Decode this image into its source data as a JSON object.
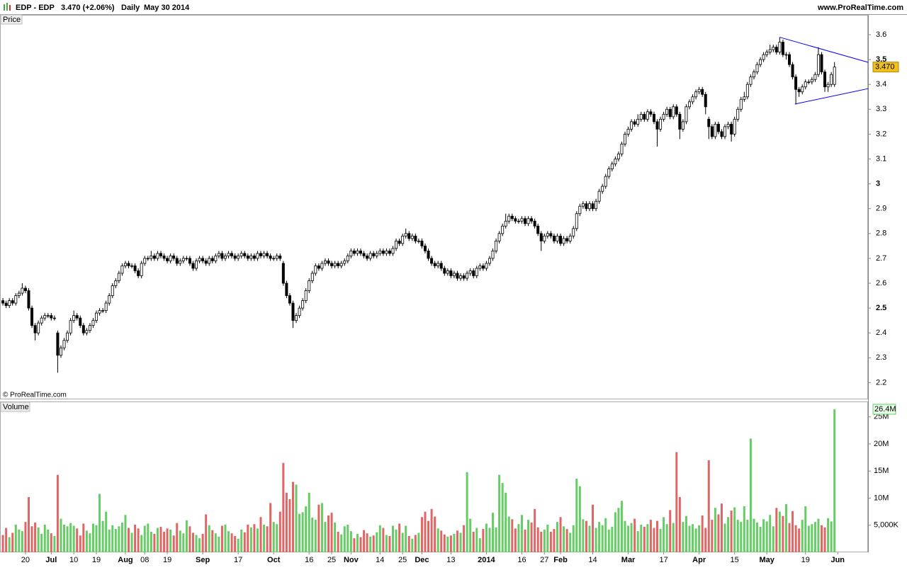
{
  "chart_data": {
    "type": "candlestick",
    "header": {
      "symbol": "EDP - EDP",
      "quote": "3.470 (+2.06%)",
      "period": "Daily",
      "date": "May 30 2014",
      "site": "www.ProRealTime.com"
    },
    "price_label": "Price",
    "volume_label": "Volume",
    "copyright": "© ProRealTime.com",
    "xlim": [
      -0.9,
      268.4
    ],
    "xticks": [
      {
        "value": 7,
        "label": "20"
      },
      {
        "value": 15,
        "label": "Jul"
      },
      {
        "value": 22,
        "label": "10"
      },
      {
        "value": 29,
        "label": "19"
      },
      {
        "value": 38,
        "label": "Aug"
      },
      {
        "value": 44,
        "label": "08"
      },
      {
        "value": 51,
        "label": "19"
      },
      {
        "value": 62,
        "label": "Sep"
      },
      {
        "value": 73,
        "label": "17"
      },
      {
        "value": 84,
        "label": "Oct"
      },
      {
        "value": 95,
        "label": "16"
      },
      {
        "value": 102,
        "label": "25"
      },
      {
        "value": 108,
        "label": "Nov"
      },
      {
        "value": 117,
        "label": "14"
      },
      {
        "value": 124,
        "label": "25"
      },
      {
        "value": 130,
        "label": "Dec"
      },
      {
        "value": 139,
        "label": "13"
      },
      {
        "value": 150,
        "label": "2014"
      },
      {
        "value": 161,
        "label": "16"
      },
      {
        "value": 168,
        "label": "27"
      },
      {
        "value": 173,
        "label": "Feb"
      },
      {
        "value": 183,
        "label": "14"
      },
      {
        "value": 194,
        "label": "Mar"
      },
      {
        "value": 205,
        "label": "17"
      },
      {
        "value": 216,
        "label": "Apr"
      },
      {
        "value": 227,
        "label": "15"
      },
      {
        "value": 237,
        "label": "May"
      },
      {
        "value": 249,
        "label": "19"
      },
      {
        "value": 259,
        "label": "Jun"
      }
    ],
    "ylim": [
      2.137,
      3.64
    ],
    "yticks": [
      2.2,
      2.3,
      2.4,
      2.5,
      2.6,
      2.7,
      2.8,
      2.9,
      3,
      3.1,
      3.2,
      3.3,
      3.4,
      3.5,
      3.6
    ],
    "vlim": [
      0,
      27.84
    ],
    "vticks": [
      {
        "value": 5,
        "label": "5,000K"
      },
      {
        "value": 10,
        "label": "10M"
      },
      {
        "value": 15,
        "label": "15M"
      },
      {
        "value": 20,
        "label": "20M"
      },
      {
        "value": 25,
        "label": "25M"
      }
    ],
    "up_color": "#66cc66",
    "down_color": "#e06666",
    "trend_color": "#0000ff",
    "price_tag": {
      "value": 3.47,
      "label": "3.470"
    },
    "volume_tag": {
      "value": 26.4,
      "label": "26.4M"
    },
    "trendlines": [
      {
        "x": [
          241,
          268.4
        ],
        "y": [
          3.59,
          3.489
        ]
      },
      {
        "x": [
          245.7,
          268.4
        ],
        "y": [
          3.321,
          3.383
        ]
      }
    ],
    "open": [
      2.53,
      2.52,
      2.51,
      2.53,
      2.52,
      2.55,
      2.56,
      2.58,
      2.57,
      2.5,
      2.43,
      2.4,
      2.44,
      2.46,
      2.47,
      2.47,
      2.46,
      2.4,
      2.31,
      2.34,
      2.37,
      2.4,
      2.45,
      2.47,
      2.46,
      2.43,
      2.4,
      2.41,
      2.43,
      2.45,
      2.48,
      2.49,
      2.49,
      2.52,
      2.55,
      2.59,
      2.61,
      2.64,
      2.67,
      2.68,
      2.67,
      2.67,
      2.65,
      2.63,
      2.68,
      2.7,
      2.7,
      2.71,
      2.7,
      2.72,
      2.71,
      2.7,
      2.69,
      2.71,
      2.7,
      2.68,
      2.69,
      2.7,
      2.7,
      2.68,
      2.66,
      2.69,
      2.7,
      2.69,
      2.68,
      2.7,
      2.69,
      2.71,
      2.72,
      2.7,
      2.71,
      2.72,
      2.71,
      2.7,
      2.71,
      2.72,
      2.71,
      2.7,
      2.71,
      2.7,
      2.72,
      2.71,
      2.72,
      2.71,
      2.7,
      2.7,
      2.71,
      2.68,
      2.6,
      2.55,
      2.52,
      2.45,
      2.47,
      2.5,
      2.53,
      2.57,
      2.61,
      2.64,
      2.67,
      2.66,
      2.68,
      2.69,
      2.68,
      2.67,
      2.68,
      2.67,
      2.68,
      2.69,
      2.71,
      2.73,
      2.72,
      2.73,
      2.72,
      2.71,
      2.7,
      2.72,
      2.71,
      2.72,
      2.73,
      2.72,
      2.73,
      2.72,
      2.74,
      2.77,
      2.76,
      2.79,
      2.8,
      2.78,
      2.79,
      2.77,
      2.77,
      2.75,
      2.73,
      2.7,
      2.68,
      2.67,
      2.68,
      2.66,
      2.64,
      2.65,
      2.63,
      2.64,
      2.62,
      2.63,
      2.62,
      2.64,
      2.65,
      2.63,
      2.66,
      2.67,
      2.66,
      2.68,
      2.7,
      2.73,
      2.77,
      2.8,
      2.83,
      2.85,
      2.87,
      2.86,
      2.85,
      2.85,
      2.86,
      2.84,
      2.86,
      2.85,
      2.83,
      2.8,
      2.77,
      2.79,
      2.8,
      2.79,
      2.77,
      2.79,
      2.76,
      2.78,
      2.77,
      2.79,
      2.82,
      2.88,
      2.91,
      2.92,
      2.9,
      2.92,
      2.9,
      2.93,
      2.97,
      2.99,
      3.03,
      3.06,
      3.08,
      3.1,
      3.12,
      3.16,
      3.2,
      3.22,
      3.25,
      3.24,
      3.26,
      3.28,
      3.26,
      3.29,
      3.28,
      3.25,
      3.22,
      3.26,
      3.28,
      3.3,
      3.27,
      3.31,
      3.28,
      3.22,
      3.25,
      3.31,
      3.33,
      3.35,
      3.37,
      3.38,
      3.36,
      3.26,
      3.23,
      3.19,
      3.24,
      3.21,
      3.19,
      3.23,
      3.24,
      3.2,
      3.26,
      3.3,
      3.34,
      3.35,
      3.4,
      3.43,
      3.45,
      3.48,
      3.5,
      3.52,
      3.53,
      3.54,
      3.55,
      3.53,
      3.57,
      3.52,
      3.52,
      3.48,
      3.43,
      3.38,
      3.37,
      3.39,
      3.41,
      3.41,
      3.42,
      3.44,
      3.52,
      3.45,
      3.39,
      3.4,
      3.4
    ],
    "high": [
      2.54,
      2.53,
      2.54,
      2.54,
      2.56,
      2.57,
      2.6,
      2.59,
      2.58,
      2.51,
      2.44,
      2.45,
      2.47,
      2.48,
      2.48,
      2.48,
      2.47,
      2.41,
      2.35,
      2.38,
      2.41,
      2.46,
      2.49,
      2.48,
      2.47,
      2.44,
      2.42,
      2.44,
      2.46,
      2.49,
      2.5,
      2.5,
      2.53,
      2.56,
      2.6,
      2.62,
      2.65,
      2.68,
      2.69,
      2.69,
      2.68,
      2.68,
      2.66,
      2.69,
      2.71,
      2.71,
      2.73,
      2.72,
      2.73,
      2.73,
      2.72,
      2.71,
      2.72,
      2.72,
      2.71,
      2.7,
      2.71,
      2.71,
      2.71,
      2.69,
      2.7,
      2.71,
      2.71,
      2.7,
      2.71,
      2.71,
      2.72,
      2.73,
      2.73,
      2.72,
      2.73,
      2.73,
      2.72,
      2.72,
      2.73,
      2.73,
      2.72,
      2.72,
      2.72,
      2.73,
      2.73,
      2.73,
      2.73,
      2.72,
      2.71,
      2.72,
      2.72,
      2.69,
      2.61,
      2.56,
      2.53,
      2.48,
      2.51,
      2.54,
      2.58,
      2.62,
      2.65,
      2.68,
      2.68,
      2.69,
      2.7,
      2.7,
      2.69,
      2.69,
      2.69,
      2.69,
      2.7,
      2.72,
      2.74,
      2.74,
      2.74,
      2.74,
      2.73,
      2.72,
      2.73,
      2.73,
      2.73,
      2.74,
      2.74,
      2.74,
      2.74,
      2.75,
      2.78,
      2.78,
      2.8,
      2.82,
      2.81,
      2.8,
      2.8,
      2.78,
      2.78,
      2.76,
      2.74,
      2.71,
      2.69,
      2.69,
      2.69,
      2.67,
      2.66,
      2.66,
      2.65,
      2.65,
      2.64,
      2.64,
      2.65,
      2.66,
      2.66,
      2.67,
      2.68,
      2.68,
      2.69,
      2.71,
      2.74,
      2.78,
      2.81,
      2.84,
      2.88,
      2.88,
      2.88,
      2.87,
      2.86,
      2.87,
      2.87,
      2.87,
      2.87,
      2.86,
      2.84,
      2.81,
      2.8,
      2.81,
      2.81,
      2.8,
      2.8,
      2.8,
      2.79,
      2.79,
      2.8,
      2.83,
      2.89,
      2.92,
      2.93,
      2.93,
      2.93,
      2.93,
      2.94,
      2.98,
      3.0,
      3.04,
      3.07,
      3.09,
      3.11,
      3.13,
      3.17,
      3.21,
      3.23,
      3.26,
      3.26,
      3.28,
      3.29,
      3.29,
      3.3,
      3.3,
      3.29,
      3.26,
      3.27,
      3.29,
      3.31,
      3.31,
      3.32,
      3.32,
      3.29,
      3.26,
      3.32,
      3.34,
      3.36,
      3.38,
      3.39,
      3.39,
      3.37,
      3.27,
      3.24,
      3.25,
      3.25,
      3.22,
      3.24,
      3.25,
      3.25,
      3.27,
      3.31,
      3.35,
      3.37,
      3.41,
      3.44,
      3.46,
      3.49,
      3.51,
      3.53,
      3.54,
      3.56,
      3.56,
      3.56,
      3.59,
      3.58,
      3.53,
      3.53,
      3.49,
      3.44,
      3.39,
      3.4,
      3.42,
      3.42,
      3.43,
      3.45,
      3.55,
      3.53,
      3.46,
      3.41,
      3.45,
      3.49
    ],
    "low": [
      2.51,
      2.5,
      2.5,
      2.51,
      2.51,
      2.54,
      2.55,
      2.56,
      2.49,
      2.42,
      2.37,
      2.39,
      2.43,
      2.45,
      2.46,
      2.45,
      2.45,
      2.24,
      2.3,
      2.33,
      2.36,
      2.39,
      2.44,
      2.45,
      2.42,
      2.39,
      2.39,
      2.4,
      2.42,
      2.44,
      2.47,
      2.48,
      2.48,
      2.51,
      2.54,
      2.58,
      2.6,
      2.63,
      2.66,
      2.66,
      2.66,
      2.64,
      2.62,
      2.62,
      2.67,
      2.69,
      2.69,
      2.69,
      2.69,
      2.7,
      2.69,
      2.68,
      2.68,
      2.69,
      2.67,
      2.67,
      2.68,
      2.69,
      2.67,
      2.65,
      2.65,
      2.68,
      2.68,
      2.67,
      2.67,
      2.68,
      2.68,
      2.7,
      2.69,
      2.69,
      2.7,
      2.7,
      2.69,
      2.69,
      2.7,
      2.7,
      2.69,
      2.69,
      2.69,
      2.69,
      2.7,
      2.7,
      2.7,
      2.69,
      2.69,
      2.69,
      2.69,
      2.59,
      2.54,
      2.51,
      2.42,
      2.44,
      2.46,
      2.49,
      2.52,
      2.56,
      2.6,
      2.63,
      2.65,
      2.65,
      2.67,
      2.67,
      2.66,
      2.66,
      2.66,
      2.66,
      2.67,
      2.68,
      2.7,
      2.71,
      2.71,
      2.71,
      2.7,
      2.69,
      2.69,
      2.7,
      2.7,
      2.71,
      2.71,
      2.71,
      2.71,
      2.71,
      2.73,
      2.75,
      2.75,
      2.78,
      2.77,
      2.77,
      2.76,
      2.76,
      2.74,
      2.72,
      2.69,
      2.67,
      2.66,
      2.66,
      2.65,
      2.63,
      2.63,
      2.62,
      2.62,
      2.61,
      2.61,
      2.61,
      2.61,
      2.63,
      2.62,
      2.62,
      2.65,
      2.65,
      2.65,
      2.67,
      2.69,
      2.72,
      2.76,
      2.79,
      2.82,
      2.84,
      2.85,
      2.84,
      2.84,
      2.84,
      2.83,
      2.83,
      2.84,
      2.82,
      2.79,
      2.73,
      2.76,
      2.78,
      2.78,
      2.76,
      2.76,
      2.75,
      2.75,
      2.76,
      2.76,
      2.78,
      2.81,
      2.87,
      2.9,
      2.89,
      2.89,
      2.89,
      2.89,
      2.92,
      2.96,
      2.98,
      3.02,
      3.05,
      3.07,
      3.09,
      3.11,
      3.15,
      3.19,
      3.21,
      3.23,
      3.23,
      3.25,
      3.25,
      3.25,
      3.27,
      3.24,
      3.15,
      3.21,
      3.25,
      3.27,
      3.26,
      3.26,
      3.27,
      3.18,
      3.21,
      3.24,
      3.3,
      3.32,
      3.34,
      3.36,
      3.35,
      3.28,
      3.18,
      3.18,
      3.18,
      3.2,
      3.18,
      3.18,
      3.22,
      3.17,
      3.19,
      3.25,
      3.29,
      3.33,
      3.34,
      3.39,
      3.42,
      3.44,
      3.47,
      3.49,
      3.51,
      3.52,
      3.53,
      3.52,
      3.52,
      3.51,
      3.5,
      3.47,
      3.42,
      3.32,
      3.35,
      3.36,
      3.38,
      3.4,
      3.4,
      3.41,
      3.43,
      3.44,
      3.37,
      3.37,
      3.39,
      3.39
    ],
    "close": [
      2.52,
      2.51,
      2.53,
      2.52,
      2.55,
      2.56,
      2.58,
      2.57,
      2.5,
      2.43,
      2.4,
      2.44,
      2.46,
      2.47,
      2.47,
      2.46,
      2.46,
      2.31,
      2.34,
      2.37,
      2.4,
      2.45,
      2.47,
      2.46,
      2.43,
      2.4,
      2.41,
      2.43,
      2.45,
      2.48,
      2.49,
      2.49,
      2.52,
      2.55,
      2.59,
      2.61,
      2.64,
      2.67,
      2.68,
      2.67,
      2.67,
      2.65,
      2.63,
      2.68,
      2.7,
      2.7,
      2.71,
      2.7,
      2.72,
      2.71,
      2.7,
      2.69,
      2.71,
      2.7,
      2.68,
      2.69,
      2.7,
      2.7,
      2.68,
      2.66,
      2.69,
      2.7,
      2.69,
      2.68,
      2.7,
      2.69,
      2.71,
      2.72,
      2.7,
      2.71,
      2.72,
      2.71,
      2.7,
      2.71,
      2.72,
      2.71,
      2.7,
      2.71,
      2.7,
      2.72,
      2.71,
      2.72,
      2.71,
      2.7,
      2.7,
      2.71,
      2.7,
      2.6,
      2.55,
      2.52,
      2.45,
      2.47,
      2.5,
      2.53,
      2.57,
      2.61,
      2.64,
      2.67,
      2.66,
      2.68,
      2.69,
      2.68,
      2.67,
      2.68,
      2.67,
      2.68,
      2.69,
      2.71,
      2.73,
      2.72,
      2.73,
      2.72,
      2.71,
      2.7,
      2.72,
      2.71,
      2.72,
      2.73,
      2.72,
      2.73,
      2.72,
      2.74,
      2.77,
      2.76,
      2.79,
      2.8,
      2.78,
      2.79,
      2.77,
      2.77,
      2.75,
      2.73,
      2.7,
      2.68,
      2.67,
      2.68,
      2.66,
      2.64,
      2.65,
      2.63,
      2.64,
      2.62,
      2.63,
      2.62,
      2.64,
      2.65,
      2.63,
      2.66,
      2.67,
      2.66,
      2.68,
      2.7,
      2.73,
      2.77,
      2.8,
      2.83,
      2.85,
      2.87,
      2.86,
      2.85,
      2.85,
      2.86,
      2.84,
      2.86,
      2.85,
      2.83,
      2.8,
      2.77,
      2.79,
      2.8,
      2.79,
      2.77,
      2.79,
      2.76,
      2.78,
      2.77,
      2.79,
      2.82,
      2.88,
      2.91,
      2.92,
      2.9,
      2.92,
      2.9,
      2.93,
      2.97,
      2.99,
      3.03,
      3.06,
      3.08,
      3.1,
      3.12,
      3.16,
      3.2,
      3.22,
      3.25,
      3.24,
      3.26,
      3.28,
      3.26,
      3.29,
      3.28,
      3.25,
      3.22,
      3.26,
      3.28,
      3.3,
      3.27,
      3.31,
      3.28,
      3.22,
      3.25,
      3.31,
      3.33,
      3.35,
      3.37,
      3.38,
      3.36,
      3.31,
      3.23,
      3.19,
      3.24,
      3.21,
      3.19,
      3.23,
      3.24,
      3.2,
      3.26,
      3.3,
      3.34,
      3.35,
      3.4,
      3.43,
      3.45,
      3.48,
      3.5,
      3.52,
      3.53,
      3.54,
      3.55,
      3.53,
      3.57,
      3.52,
      3.52,
      3.48,
      3.43,
      3.38,
      3.37,
      3.39,
      3.41,
      3.41,
      3.42,
      3.44,
      3.52,
      3.45,
      3.39,
      3.4,
      3.44,
      3.47
    ],
    "volume": [
      3.2,
      4.5,
      2.8,
      3.6,
      5.1,
      4.2,
      3.9,
      5.6,
      10.2,
      4.8,
      5.5,
      4.6,
      3.4,
      5.1,
      4.2,
      3.5,
      3.0,
      14.3,
      6.2,
      5.1,
      4.8,
      5.4,
      4.9,
      4.4,
      3.1,
      5.3,
      4.0,
      3.5,
      5.3,
      5.0,
      10.8,
      5.8,
      7.5,
      4.2,
      5.0,
      4.3,
      4.8,
      5.5,
      6.9,
      4.5,
      3.6,
      5.1,
      4.4,
      3.2,
      4.9,
      5.3,
      3.8,
      3.4,
      4.5,
      4.7,
      3.8,
      4.4,
      4.2,
      3.1,
      5.4,
      4.0,
      3.5,
      5.9,
      4.8,
      3.6,
      3.2,
      2.6,
      3.4,
      7.0,
      5.0,
      4.1,
      3.5,
      2.9,
      4.9,
      5.1,
      3.9,
      3.5,
      3.0,
      2.5,
      4.2,
      3.7,
      5.1,
      4.6,
      5.2,
      4.4,
      6.5,
      5.1,
      4.8,
      9.1,
      5.6,
      5.2,
      7.5,
      16.5,
      11.0,
      9.8,
      13.0,
      12.5,
      7.1,
      7.4,
      8.5,
      11.0,
      6.4,
      6.0,
      8.8,
      9.1,
      5.6,
      6.8,
      7.3,
      5.5,
      3.8,
      3.3,
      4.8,
      5.1,
      3.9,
      2.6,
      3.4,
      2.8,
      4.1,
      3.5,
      2.9,
      3.1,
      3.7,
      5.0,
      4.5,
      3.2,
      3.0,
      4.9,
      4.2,
      5.3,
      3.6,
      4.9,
      3.0,
      2.5,
      3.2,
      3.6,
      6.5,
      7.5,
      5.8,
      8.0,
      6.6,
      4.4,
      4.0,
      3.3,
      2.9,
      3.1,
      3.4,
      4.0,
      3.6,
      5.0,
      14.8,
      6.2,
      3.8,
      4.5,
      2.6,
      4.3,
      5.3,
      4.5,
      7.3,
      4.6,
      14.3,
      12.8,
      11.0,
      6.6,
      6.1,
      4.4,
      5.2,
      6.9,
      4.2,
      6.0,
      5.5,
      8.0,
      4.6,
      3.8,
      4.2,
      5.1,
      3.8,
      4.3,
      5.6,
      6.5,
      4.8,
      4.3,
      3.6,
      5.0,
      13.6,
      12.2,
      6.1,
      5.8,
      4.9,
      8.8,
      4.5,
      5.6,
      5.0,
      6.3,
      4.2,
      4.7,
      7.4,
      8.2,
      9.5,
      5.8,
      4.9,
      5.4,
      6.2,
      3.9,
      5.1,
      4.7,
      5.2,
      6.0,
      4.5,
      5.8,
      4.3,
      6.5,
      5.2,
      7.8,
      5.4,
      18.5,
      10.2,
      5.6,
      6.7,
      4.9,
      5.2,
      4.4,
      5.0,
      6.8,
      4.5,
      17.0,
      6.0,
      8.2,
      7.0,
      9.0,
      5.3,
      6.5,
      7.7,
      8.3,
      6.0,
      5.6,
      8.5,
      6.0,
      21.0,
      6.2,
      5.5,
      4.7,
      6.1,
      5.7,
      6.9,
      4.8,
      8.2,
      7.5,
      6.7,
      8.9,
      5.4,
      7.6,
      5.0,
      4.4,
      6.0,
      8.5,
      4.9,
      5.2,
      5.6,
      6.2,
      5.0,
      4.6,
      6.3,
      5.7,
      26.4
    ]
  }
}
